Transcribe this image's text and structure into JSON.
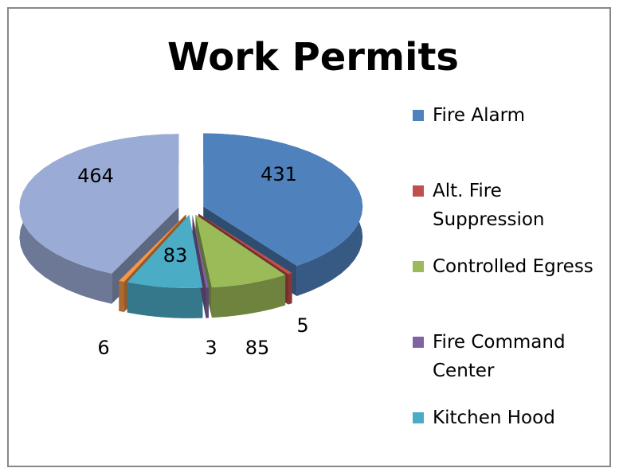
{
  "chart_data": {
    "type": "pie",
    "title": "Work Permits",
    "categories": [
      "Fire Alarm",
      "Alt. Fire Suppression",
      "Controlled Egress",
      "Fire Command Center",
      "Kitchen Hood",
      null,
      null
    ],
    "values": [
      431,
      5,
      85,
      3,
      83,
      6,
      464
    ],
    "colors": [
      "#4f81bd",
      "#c0504d",
      "#9bbb59",
      "#8064a2",
      "#4bacc6",
      "#f79646",
      "#9aacd6"
    ],
    "legend": "right"
  }
}
